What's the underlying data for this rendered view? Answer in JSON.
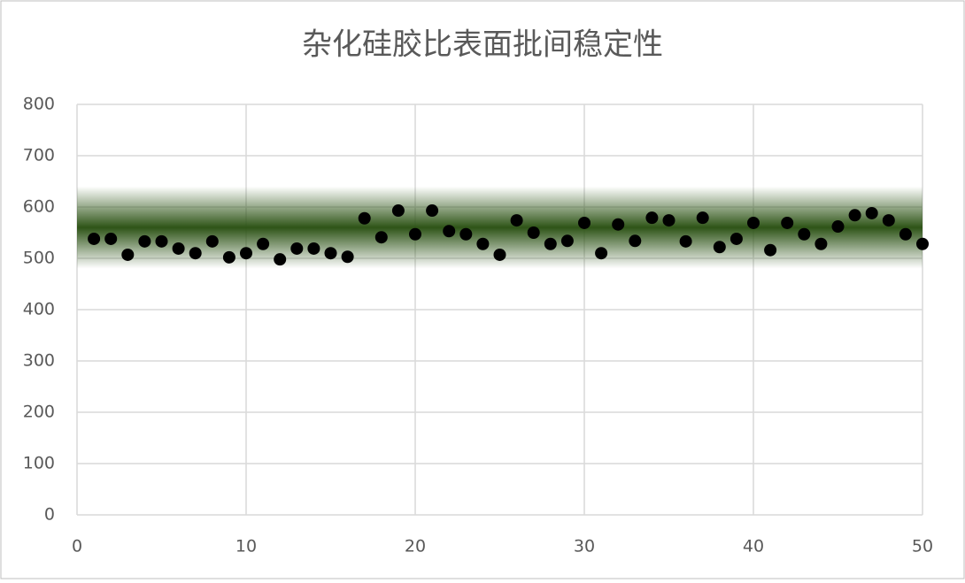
{
  "chart_data": {
    "type": "scatter",
    "title": "杂化硅胶比表面批间稳定性",
    "x": [
      1,
      2,
      3,
      4,
      5,
      6,
      7,
      8,
      9,
      10,
      11,
      12,
      13,
      14,
      15,
      16,
      17,
      18,
      19,
      20,
      21,
      22,
      23,
      24,
      25,
      26,
      27,
      28,
      29,
      30,
      31,
      32,
      33,
      34,
      35,
      36,
      37,
      38,
      39,
      40,
      41,
      42,
      43,
      44,
      45,
      46,
      47,
      48,
      49,
      50
    ],
    "series": [
      {
        "color": "#000000",
        "values": [
          538,
          538,
          507,
          533,
          533,
          519,
          510,
          533,
          502,
          510,
          528,
          498,
          519,
          519,
          510,
          503,
          578,
          541,
          593,
          547,
          593,
          553,
          547,
          528,
          507,
          574,
          550,
          528,
          534,
          569,
          510,
          566,
          534,
          579,
          574,
          533,
          579,
          522,
          538,
          569,
          516,
          569,
          547,
          528,
          562,
          584,
          588,
          574,
          547,
          528
        ]
      }
    ],
    "xlim": [
      0,
      50
    ],
    "xticks": [
      0,
      10,
      20,
      30,
      40,
      50
    ],
    "ylim": [
      0,
      800
    ],
    "yticks": [
      0,
      100,
      200,
      300,
      400,
      500,
      600,
      700,
      800
    ],
    "grid": true,
    "band": {
      "range": [
        480,
        640
      ],
      "color": "#2e5417"
    }
  }
}
